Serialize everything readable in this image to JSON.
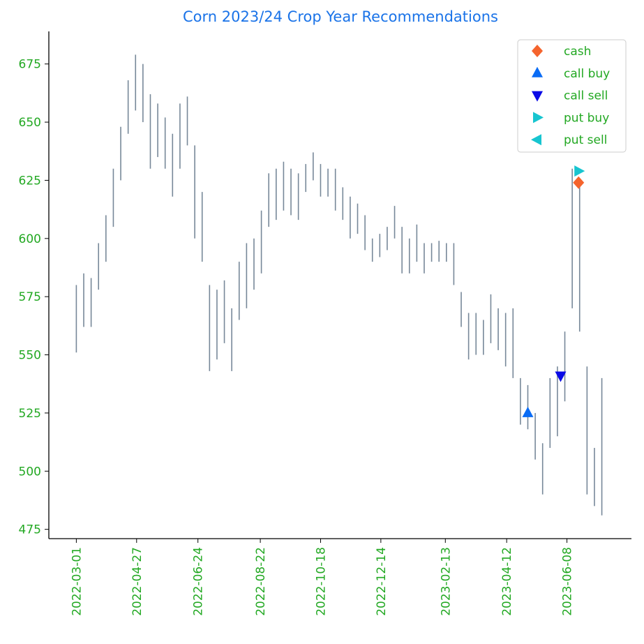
{
  "chart_data": {
    "type": "range",
    "title": "Corn 2023/24 Crop Year Recommendations",
    "color": "#778899",
    "x": [
      "2022-03-01",
      "2022-03-08",
      "2022-03-15",
      "2022-03-22",
      "2022-03-29",
      "2022-04-05",
      "2022-04-12",
      "2022-04-19",
      "2022-04-26",
      "2022-05-03",
      "2022-05-10",
      "2022-05-17",
      "2022-05-24",
      "2022-05-31",
      "2022-06-07",
      "2022-06-14",
      "2022-06-21",
      "2022-06-28",
      "2022-07-05",
      "2022-07-12",
      "2022-07-19",
      "2022-07-26",
      "2022-08-02",
      "2022-08-09",
      "2022-08-16",
      "2022-08-23",
      "2022-08-30",
      "2022-09-06",
      "2022-09-13",
      "2022-09-20",
      "2022-09-27",
      "2022-10-04",
      "2022-10-11",
      "2022-10-18",
      "2022-10-25",
      "2022-11-01",
      "2022-11-08",
      "2022-11-15",
      "2022-11-22",
      "2022-11-29",
      "2022-12-06",
      "2022-12-13",
      "2022-12-20",
      "2022-12-27",
      "2023-01-03",
      "2023-01-10",
      "2023-01-17",
      "2023-01-24",
      "2023-01-31",
      "2023-02-07",
      "2023-02-14",
      "2023-02-21",
      "2023-02-28",
      "2023-03-07",
      "2023-03-14",
      "2023-03-21",
      "2023-03-28",
      "2023-04-04",
      "2023-04-11",
      "2023-04-18",
      "2023-04-25",
      "2023-05-02",
      "2023-05-09",
      "2023-05-16",
      "2023-05-23",
      "2023-05-30",
      "2023-06-06",
      "2023-06-13",
      "2023-06-20",
      "2023-06-27",
      "2023-07-04",
      "2023-07-11"
    ],
    "high": [
      580,
      585,
      583,
      598,
      610,
      630,
      648,
      668,
      679,
      675,
      662,
      658,
      652,
      645,
      658,
      661,
      640,
      620,
      580,
      578,
      582,
      570,
      590,
      598,
      600,
      612,
      628,
      630,
      633,
      630,
      628,
      632,
      637,
      632,
      630,
      630,
      622,
      618,
      615,
      610,
      600,
      602,
      605,
      614,
      605,
      600,
      606,
      598,
      598,
      599,
      598,
      598,
      577,
      568,
      568,
      565,
      576,
      570,
      568,
      570,
      540,
      537,
      525,
      512,
      540,
      545,
      560,
      630,
      625,
      545,
      510,
      540
    ],
    "low": [
      551,
      562,
      562,
      578,
      590,
      605,
      625,
      645,
      655,
      650,
      630,
      635,
      630,
      618,
      630,
      640,
      600,
      590,
      543,
      548,
      555,
      543,
      565,
      570,
      578,
      585,
      605,
      608,
      612,
      610,
      608,
      620,
      625,
      618,
      618,
      612,
      608,
      600,
      602,
      595,
      590,
      592,
      595,
      600,
      585,
      585,
      590,
      585,
      590,
      590,
      590,
      580,
      562,
      548,
      550,
      550,
      555,
      552,
      545,
      540,
      520,
      518,
      505,
      490,
      510,
      515,
      530,
      570,
      560,
      490,
      485,
      481
    ],
    "series": [
      {
        "name": "cash",
        "color": "#f5642d",
        "marker": "diamond",
        "x": [
          "2023-06-19"
        ],
        "values": [
          624
        ]
      },
      {
        "name": "call buy",
        "color": "#0a6cf5",
        "marker": "triangle-up",
        "x": [
          "2023-05-02"
        ],
        "values": [
          525
        ]
      },
      {
        "name": "call sell",
        "color": "#0a0ae6",
        "marker": "triangle-down",
        "x": [
          "2023-06-02"
        ],
        "values": [
          541
        ]
      },
      {
        "name": "put buy",
        "color": "#17c5d0",
        "marker": "triangle-right",
        "x": [
          "2023-06-19"
        ],
        "values": [
          629
        ]
      },
      {
        "name": "put sell",
        "color": "#17c5d0",
        "marker": "triangle-left",
        "x": [],
        "values": []
      }
    ],
    "xlim": [
      "2022-02-03",
      "2023-08-08"
    ],
    "xticks": [
      "2022-03-01",
      "2022-04-27",
      "2022-06-24",
      "2022-08-22",
      "2022-10-18",
      "2022-12-14",
      "2023-02-13",
      "2023-04-12",
      "2023-06-08"
    ],
    "ylim": [
      471,
      689
    ],
    "yticks": [
      475,
      500,
      525,
      550,
      575,
      600,
      625,
      650,
      675
    ],
    "legend": "upper-right"
  }
}
